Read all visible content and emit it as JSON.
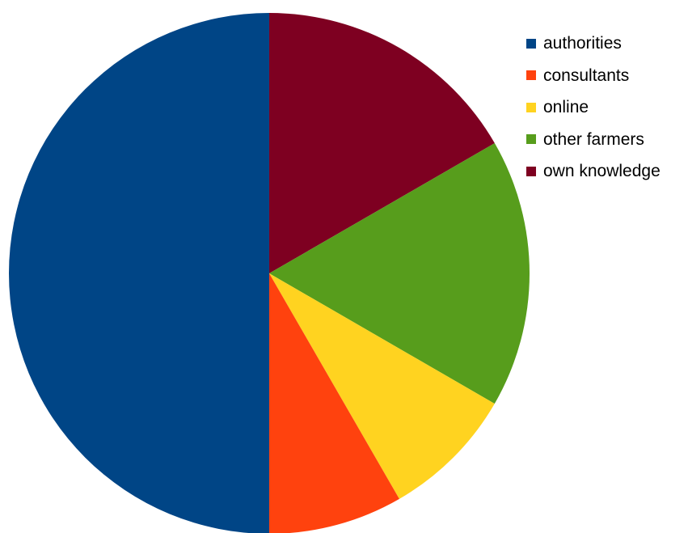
{
  "chart_data": {
    "type": "pie",
    "title": "",
    "categories": [
      "authorities",
      "consultants",
      "online",
      "other farmers",
      "own knowledge"
    ],
    "values": [
      50,
      8.33,
      8.33,
      16.67,
      16.67
    ],
    "colors": [
      "#004586",
      "#ff420e",
      "#ffd320",
      "#579d1c",
      "#7e0021"
    ],
    "order_on_chart": "clockwise from top, own knowledge first",
    "legend_position": "top-right"
  }
}
